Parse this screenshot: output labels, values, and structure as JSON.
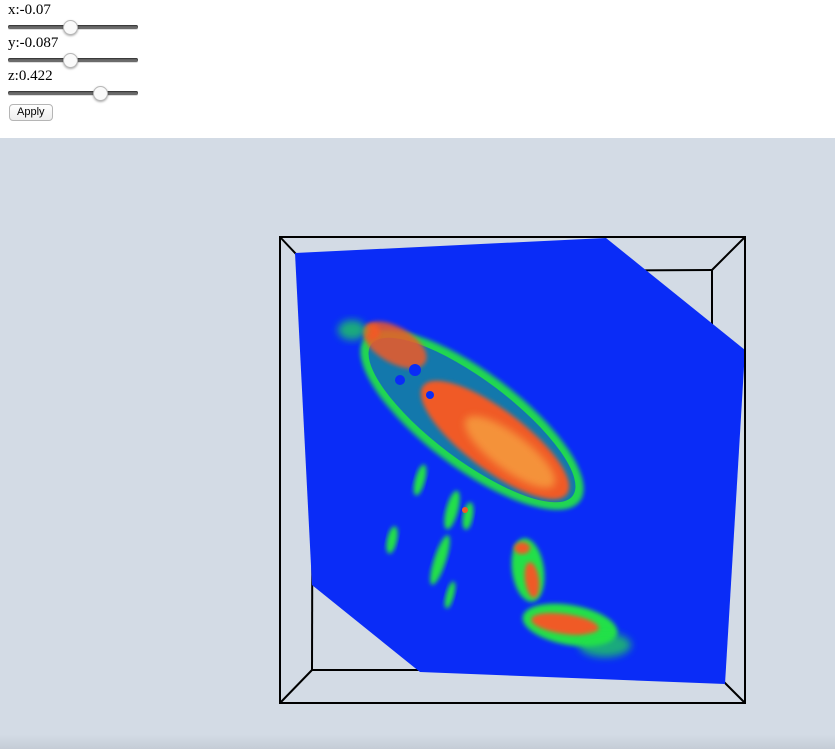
{
  "controls": {
    "sliders": [
      {
        "label": "x:-0.07",
        "value": -0.07,
        "fraction": 0.47
      },
      {
        "label": "y:-0.087",
        "value": -0.087,
        "fraction": 0.47
      },
      {
        "label": "z:0.422",
        "value": 0.422,
        "fraction": 0.7
      }
    ],
    "apply_label": "Apply"
  },
  "viewer": {
    "background": "#d3dbe5",
    "slice_color": "#0a2cf7",
    "heat_colors": [
      "#22e04a",
      "#f05a28",
      "#f6a040"
    ],
    "frame_color": "#000000"
  }
}
